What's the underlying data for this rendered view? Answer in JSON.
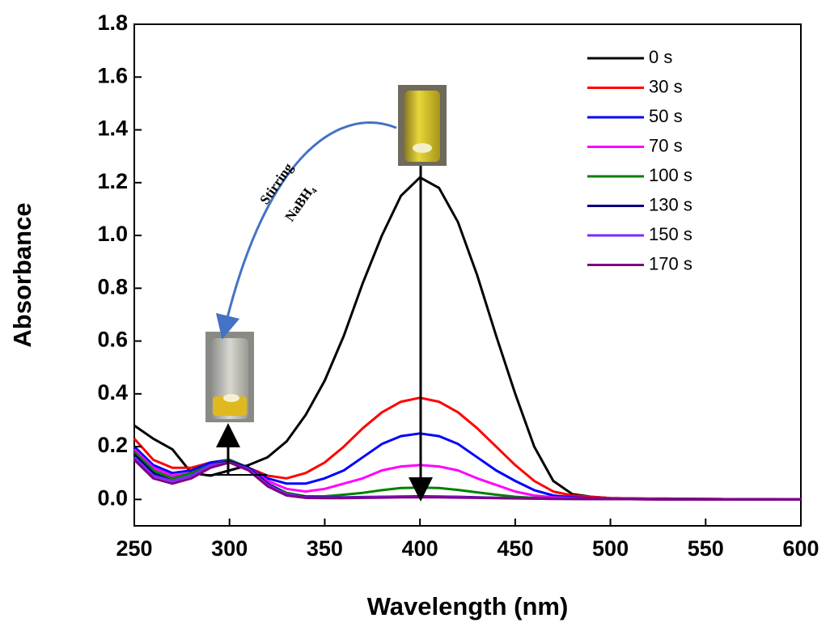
{
  "chart_data": {
    "type": "line",
    "x_label": "Wavelength (nm)",
    "y_label": "Absorbance",
    "xlim": [
      250,
      600
    ],
    "ylim": [
      -0.1,
      1.8
    ],
    "xticks": [
      250,
      300,
      350,
      400,
      450,
      500,
      550,
      600
    ],
    "yticks": [
      {
        "value": 0,
        "label": "0.0"
      },
      0.2,
      0.4,
      0.6,
      0.8,
      {
        "value": 1,
        "label": "1.0"
      },
      1.2,
      1.4,
      1.6,
      1.8
    ],
    "legend": "upper right",
    "annotations": [
      "Stirring",
      "NaBH₄"
    ],
    "x": [
      250,
      260,
      270,
      280,
      290,
      300,
      310,
      320,
      330,
      340,
      350,
      360,
      370,
      380,
      390,
      400,
      410,
      420,
      430,
      440,
      450,
      460,
      470,
      480,
      490,
      500,
      510,
      520,
      530,
      540,
      550,
      560,
      570,
      580,
      590,
      600
    ],
    "series": [
      {
        "name": "0 s",
        "color": "#000000",
        "values": [
          0.28,
          0.23,
          0.19,
          0.1,
          0.09,
          0.11,
          0.13,
          0.16,
          0.22,
          0.32,
          0.45,
          0.62,
          0.82,
          1.0,
          1.15,
          1.22,
          1.18,
          1.05,
          0.85,
          0.62,
          0.4,
          0.2,
          0.07,
          0.02,
          0.01,
          0.005,
          0.004,
          0.003,
          0.003,
          0.002,
          0.002,
          0.001,
          0.001,
          0.001,
          0,
          0
        ]
      },
      {
        "name": "30 s",
        "color": "#ff0000",
        "values": [
          0.23,
          0.15,
          0.12,
          0.12,
          0.14,
          0.15,
          0.12,
          0.09,
          0.08,
          0.1,
          0.14,
          0.2,
          0.27,
          0.33,
          0.37,
          0.385,
          0.37,
          0.33,
          0.27,
          0.2,
          0.13,
          0.07,
          0.03,
          0.015,
          0.01,
          0.005,
          0.004,
          0.003,
          0.003,
          0.002,
          0.002,
          0.001,
          0.001,
          0.001,
          0,
          0
        ]
      },
      {
        "name": "50 s",
        "color": "#0000ff",
        "values": [
          0.2,
          0.13,
          0.1,
          0.11,
          0.14,
          0.15,
          0.12,
          0.08,
          0.06,
          0.06,
          0.08,
          0.11,
          0.16,
          0.21,
          0.24,
          0.25,
          0.24,
          0.21,
          0.16,
          0.11,
          0.07,
          0.035,
          0.015,
          0.008,
          0.005,
          0.003,
          0.003,
          0.002,
          0.002,
          0.002,
          0.001,
          0.001,
          0.001,
          0,
          0,
          0
        ]
      },
      {
        "name": "70 s",
        "color": "#ff00ff",
        "values": [
          0.19,
          0.12,
          0.09,
          0.1,
          0.13,
          0.15,
          0.12,
          0.07,
          0.04,
          0.03,
          0.04,
          0.06,
          0.08,
          0.11,
          0.125,
          0.13,
          0.125,
          0.11,
          0.08,
          0.055,
          0.03,
          0.015,
          0.008,
          0.005,
          0.003,
          0.003,
          0.002,
          0.002,
          0.002,
          0.001,
          0.001,
          0.001,
          0,
          0,
          0,
          0
        ]
      },
      {
        "name": "100 s",
        "color": "#008000",
        "values": [
          0.18,
          0.11,
          0.08,
          0.1,
          0.13,
          0.15,
          0.12,
          0.06,
          0.025,
          0.012,
          0.012,
          0.018,
          0.025,
          0.035,
          0.043,
          0.045,
          0.043,
          0.036,
          0.027,
          0.018,
          0.01,
          0.006,
          0.004,
          0.003,
          0.002,
          0.002,
          0.002,
          0.001,
          0.001,
          0.001,
          0,
          0,
          0,
          0,
          0,
          0
        ]
      },
      {
        "name": "130 s",
        "color": "#000080",
        "values": [
          0.17,
          0.1,
          0.07,
          0.09,
          0.13,
          0.145,
          0.12,
          0.06,
          0.02,
          0.01,
          0.008,
          0.008,
          0.009,
          0.01,
          0.011,
          0.012,
          0.011,
          0.01,
          0.008,
          0.006,
          0.005,
          0.004,
          0.003,
          0.002,
          0.002,
          0.001,
          0.001,
          0.001,
          0,
          0,
          0,
          0,
          0,
          0,
          0,
          0
        ]
      },
      {
        "name": "150 s",
        "color": "#7a2bff",
        "values": [
          0.16,
          0.09,
          0.07,
          0.09,
          0.13,
          0.14,
          0.115,
          0.055,
          0.02,
          0.008,
          0.007,
          0.007,
          0.008,
          0.009,
          0.01,
          0.01,
          0.01,
          0.009,
          0.007,
          0.006,
          0.005,
          0.004,
          0.003,
          0.002,
          0.002,
          0.001,
          0.001,
          0.001,
          0,
          0,
          0,
          0,
          0,
          0,
          0,
          0
        ]
      },
      {
        "name": "170 s",
        "color": "#800080",
        "values": [
          0.15,
          0.08,
          0.06,
          0.08,
          0.12,
          0.14,
          0.11,
          0.05,
          0.015,
          0.006,
          0.005,
          0.005,
          0.006,
          0.007,
          0.008,
          0.008,
          0.008,
          0.007,
          0.006,
          0.005,
          0.004,
          0.003,
          0.002,
          0.002,
          0.001,
          0.001,
          0.001,
          0,
          0,
          0,
          0,
          0,
          0,
          0,
          0,
          0
        ]
      }
    ]
  }
}
